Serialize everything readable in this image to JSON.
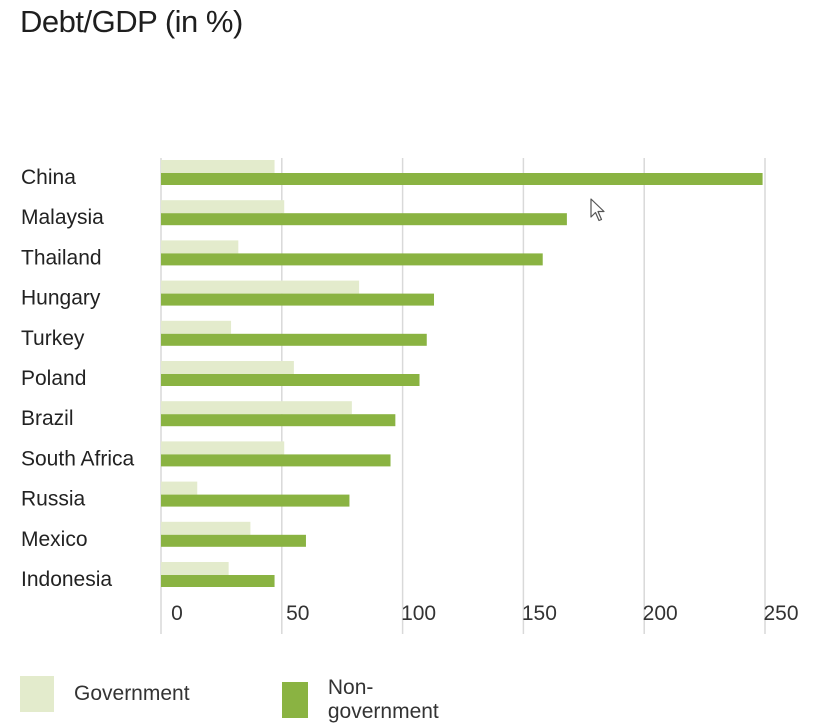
{
  "title": "Debt/GDP (in %)",
  "colors": {
    "government": "#e3ebcc",
    "non_government": "#8ab342",
    "grid": "#d9d9d9"
  },
  "legend": {
    "government_label": "Government",
    "non_government_label": "Non-government"
  },
  "chart_data": {
    "type": "bar",
    "orientation": "horizontal",
    "title": "Debt/GDP (in %)",
    "categories": [
      "China",
      "Malaysia",
      "Thailand",
      "Hungary",
      "Turkey",
      "Poland",
      "Brazil",
      "South Africa",
      "Russia",
      "Mexico",
      "Indonesia"
    ],
    "series": [
      {
        "name": "Government",
        "values": [
          47,
          51,
          32,
          82,
          29,
          55,
          79,
          51,
          15,
          37,
          28
        ]
      },
      {
        "name": "Non-government",
        "values": [
          249,
          168,
          158,
          113,
          110,
          107,
          97,
          95,
          78,
          60,
          47
        ]
      }
    ],
    "xlim": [
      0,
      250
    ],
    "xticks": [
      "0",
      "50",
      "100",
      "150",
      "200",
      "250"
    ],
    "grid": true,
    "legend_position": "bottom"
  },
  "cursor_icon": "mouse-pointer-icon"
}
